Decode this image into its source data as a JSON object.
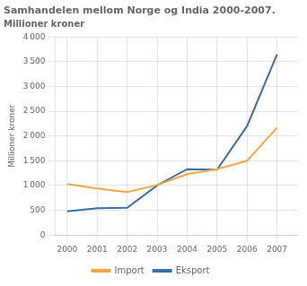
{
  "chart_data": {
    "type": "line",
    "title": "Samhandelen mellom Norge og India 2000-2007.",
    "subtitle": "Millioner kroner",
    "y_label": "Millioner kroner",
    "x": [
      2000,
      2001,
      2002,
      2003,
      2004,
      2005,
      2006,
      2007
    ],
    "series": [
      {
        "name": "Import",
        "color": "#f4a640",
        "values": [
          1030,
          940,
          870,
          1010,
          1230,
          1330,
          1500,
          2170
        ]
      },
      {
        "name": "Eksport",
        "color": "#3a6faa",
        "values": [
          480,
          540,
          550,
          1000,
          1330,
          1320,
          2200,
          3650
        ]
      }
    ],
    "xlim": [
      1999.6,
      2007.7
    ],
    "xticks": [
      2000,
      2001,
      2002,
      2003,
      2004,
      2005,
      2006,
      2007
    ],
    "ylim": [
      0,
      4000
    ],
    "yticks": [
      0,
      500,
      {
        "value": 1000,
        "label": "1 000"
      },
      {
        "value": 1500,
        "label": "1 500"
      },
      {
        "value": 2000,
        "label": "2 000"
      },
      {
        "value": 2500,
        "label": "2 500"
      },
      {
        "value": 3000,
        "label": "3 000"
      },
      {
        "value": 3500,
        "label": "3 500"
      },
      {
        "value": 4000,
        "label": "4 000"
      }
    ],
    "grid": true,
    "legend": "bottom"
  }
}
